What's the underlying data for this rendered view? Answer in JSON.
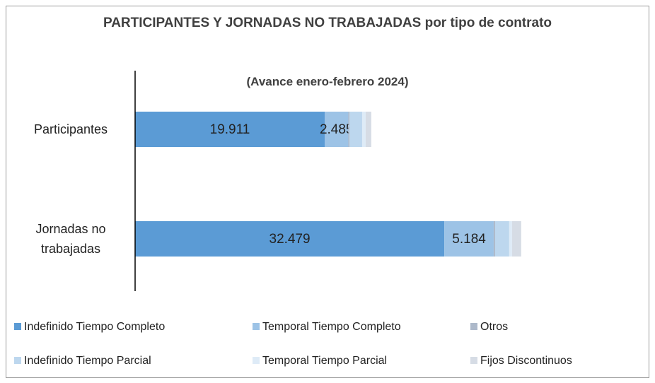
{
  "chart_data": {
    "type": "stacked_bar_horizontal",
    "title": "PARTICIPANTES  Y JORNADAS NO TRABAJADAS  por tipo de contrato",
    "subtitle": "(Avance enero-febrero 2024)",
    "categories": [
      "Participantes",
      "Jornadas no trabajadas"
    ],
    "xlim": [
      0,
      50000
    ],
    "series": [
      {
        "name": "Indefinido Tiempo Completo",
        "color": "#5b9bd5",
        "values": [
          19911,
          32479
        ],
        "value_labels": [
          "19.911",
          "32.479"
        ]
      },
      {
        "name": "Temporal Tiempo Completo",
        "color": "#9dc3e6",
        "values": [
          2485,
          5184
        ],
        "value_labels": [
          "2.485",
          "5.184"
        ]
      },
      {
        "name": "Otros",
        "color": "#adb9ca",
        "values": [
          120,
          150
        ]
      },
      {
        "name": "Indefinido Tiempo Parcial",
        "color": "#bdd7ee",
        "values": [
          1330,
          1480
        ]
      },
      {
        "name": "Temporal Tiempo Parcial",
        "color": "#deebf7",
        "values": [
          370,
          300
        ]
      },
      {
        "name": "Fijos Discontinuos",
        "color": "#d6dce5",
        "values": [
          590,
          960
        ]
      }
    ]
  }
}
